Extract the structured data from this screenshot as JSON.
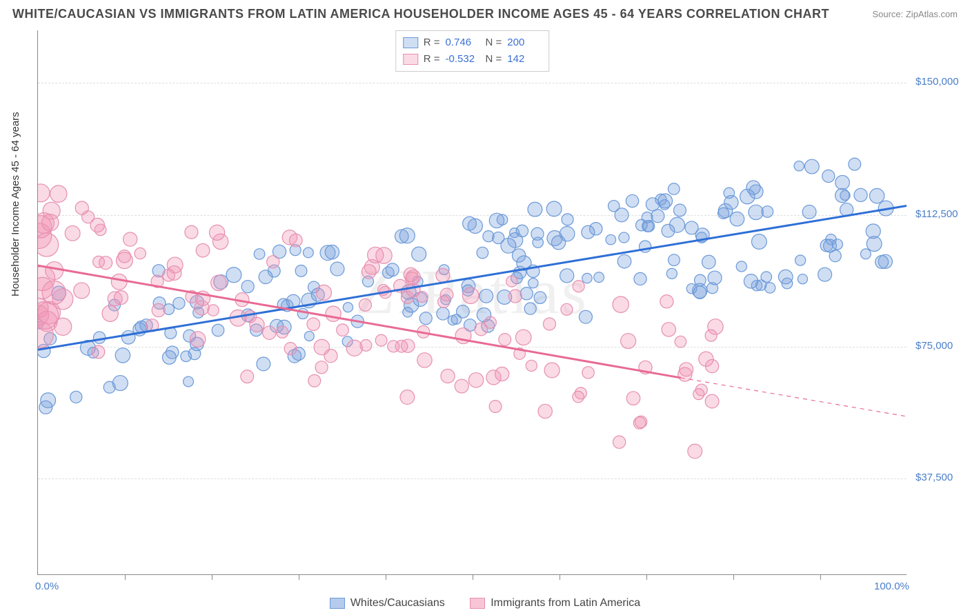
{
  "title": "WHITE/CAUCASIAN VS IMMIGRANTS FROM LATIN AMERICA HOUSEHOLDER INCOME AGES 45 - 64 YEARS CORRELATION CHART",
  "source": "Source: ZipAtlas.com",
  "watermark": "ZIPatlas",
  "y_axis_label": "Householder Income Ages 45 - 64 years",
  "chart": {
    "type": "scatter",
    "xlim": [
      0,
      100
    ],
    "ylim": [
      10000,
      165000
    ],
    "x_ticks_labeled": {
      "0": "0.0%",
      "100": "100.0%"
    },
    "x_ticks_minor": [
      10,
      20,
      30,
      40,
      50,
      60,
      70,
      80,
      90
    ],
    "y_ticks": {
      "37500": "$37,500",
      "75000": "$75,000",
      "112500": "$112,500",
      "150000": "$150,000"
    },
    "grid_color": "#dddddd",
    "axis_color": "#888888",
    "background_color": "#ffffff",
    "label_color": "#4a7ec9",
    "series": [
      {
        "name": "Whites/Caucasians",
        "R": "0.746",
        "N": "200",
        "color_fill": "rgba(120,160,220,0.35)",
        "color_stroke": "#6a99d8",
        "trend_color": "#2e6fd6",
        "trend": {
          "x1": 0,
          "y1": 74000,
          "x2": 100,
          "y2": 115000
        },
        "marker_r_base": 7,
        "points_seed": 200
      },
      {
        "name": "Immigrants from Latin America",
        "R": "-0.532",
        "N": "142",
        "color_fill": "rgba(240,150,180,0.35)",
        "color_stroke": "#e68fb0",
        "trend_color": "#e86a94",
        "trend": {
          "x1": 0,
          "y1": 98000,
          "x2": 74,
          "y2": 66000
        },
        "trend_dash": {
          "x1": 74,
          "y1": 66000,
          "x2": 100,
          "y2": 55000
        },
        "marker_r_base": 8,
        "points_seed": 142
      }
    ]
  },
  "legend_bottom": [
    {
      "label": "Whites/Caucasians",
      "fill": "rgba(120,160,220,0.55)",
      "stroke": "#6a99d8"
    },
    {
      "label": "Immigrants from Latin America",
      "fill": "rgba(240,150,180,0.55)",
      "stroke": "#e68fb0"
    }
  ]
}
